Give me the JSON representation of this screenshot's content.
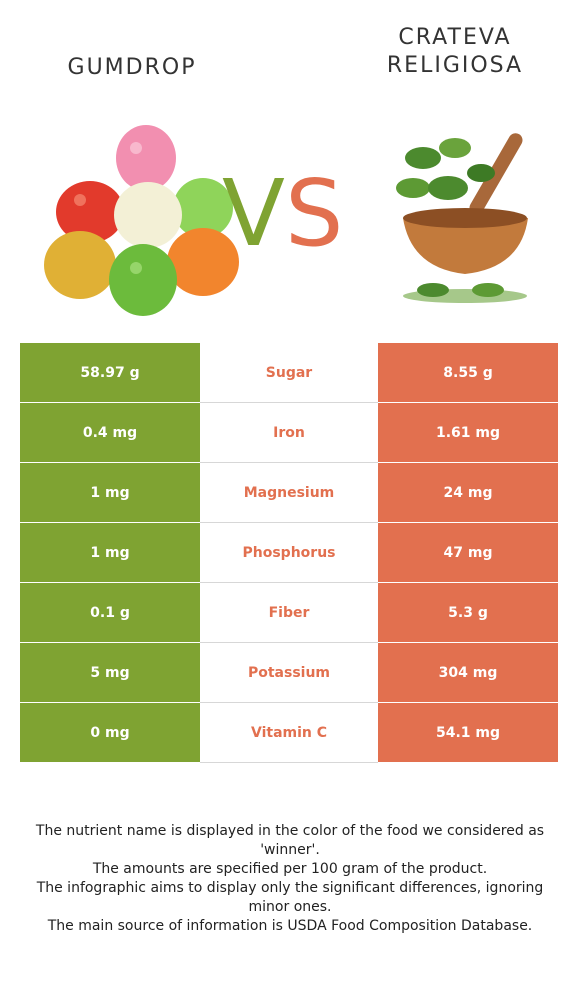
{
  "food_left": {
    "name": "GUMDROP",
    "color": "#7fa332"
  },
  "food_right": {
    "name_line1": "CRATEVA",
    "name_line2": "RELIGIOSA",
    "color": "#e2704f"
  },
  "vs": {
    "v": "V",
    "s": "S"
  },
  "rows": [
    {
      "left": "58.97 g",
      "nutrient": "Sugar",
      "right": "8.55 g"
    },
    {
      "left": "0.4 mg",
      "nutrient": "Iron",
      "right": "1.61 mg"
    },
    {
      "left": "1 mg",
      "nutrient": "Magnesium",
      "right": "24 mg"
    },
    {
      "left": "1 mg",
      "nutrient": "Phosphorus",
      "right": "47 mg"
    },
    {
      "left": "0.1 g",
      "nutrient": "Fiber",
      "right": "5.3 g"
    },
    {
      "left": "5 mg",
      "nutrient": "Potassium",
      "right": "304 mg"
    },
    {
      "left": "0 mg",
      "nutrient": "Vitamin C",
      "right": "54.1 mg"
    }
  ],
  "notes": [
    "The nutrient name is displayed in the color of the food we considered as 'winner'.",
    "The amounts are specified per 100 gram of the product.",
    "The infographic aims to display only the significant differences, ignoring minor ones.",
    "The main source of information is USDA Food Composition Database."
  ]
}
